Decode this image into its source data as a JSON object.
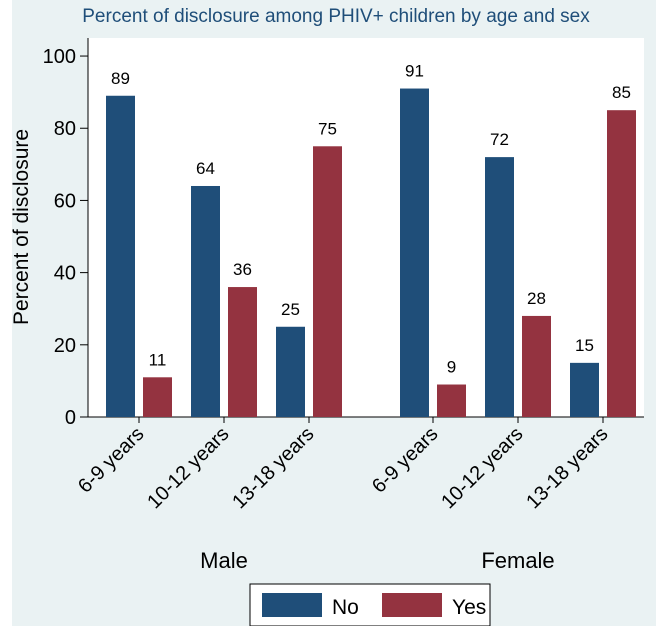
{
  "chart_data": {
    "type": "bar",
    "title": "Percent of disclosure among PHIV+ children by age and sex",
    "ylabel": "Percent of disclosure",
    "ylim": [
      0,
      105
    ],
    "yticks": [
      0,
      20,
      40,
      60,
      80,
      100
    ],
    "grid": false,
    "legend_position": "bottom",
    "groups": [
      {
        "name": "Male",
        "categories": [
          "6-9 years",
          "10-12 years",
          "13-18 years"
        ]
      },
      {
        "name": "Female",
        "categories": [
          "6-9 years",
          "10-12 years",
          "13-18 years"
        ]
      }
    ],
    "series": [
      {
        "name": "No",
        "color": "#1f4e79",
        "values": [
          [
            89,
            64,
            25
          ],
          [
            91,
            72,
            15
          ]
        ]
      },
      {
        "name": "Yes",
        "color": "#943340",
        "values": [
          [
            11,
            36,
            75
          ],
          [
            9,
            28,
            85
          ]
        ]
      }
    ]
  },
  "colors": {
    "plot_background": "#eaf2f3",
    "page_background": "#ffffff",
    "title": "#1f4e79"
  }
}
